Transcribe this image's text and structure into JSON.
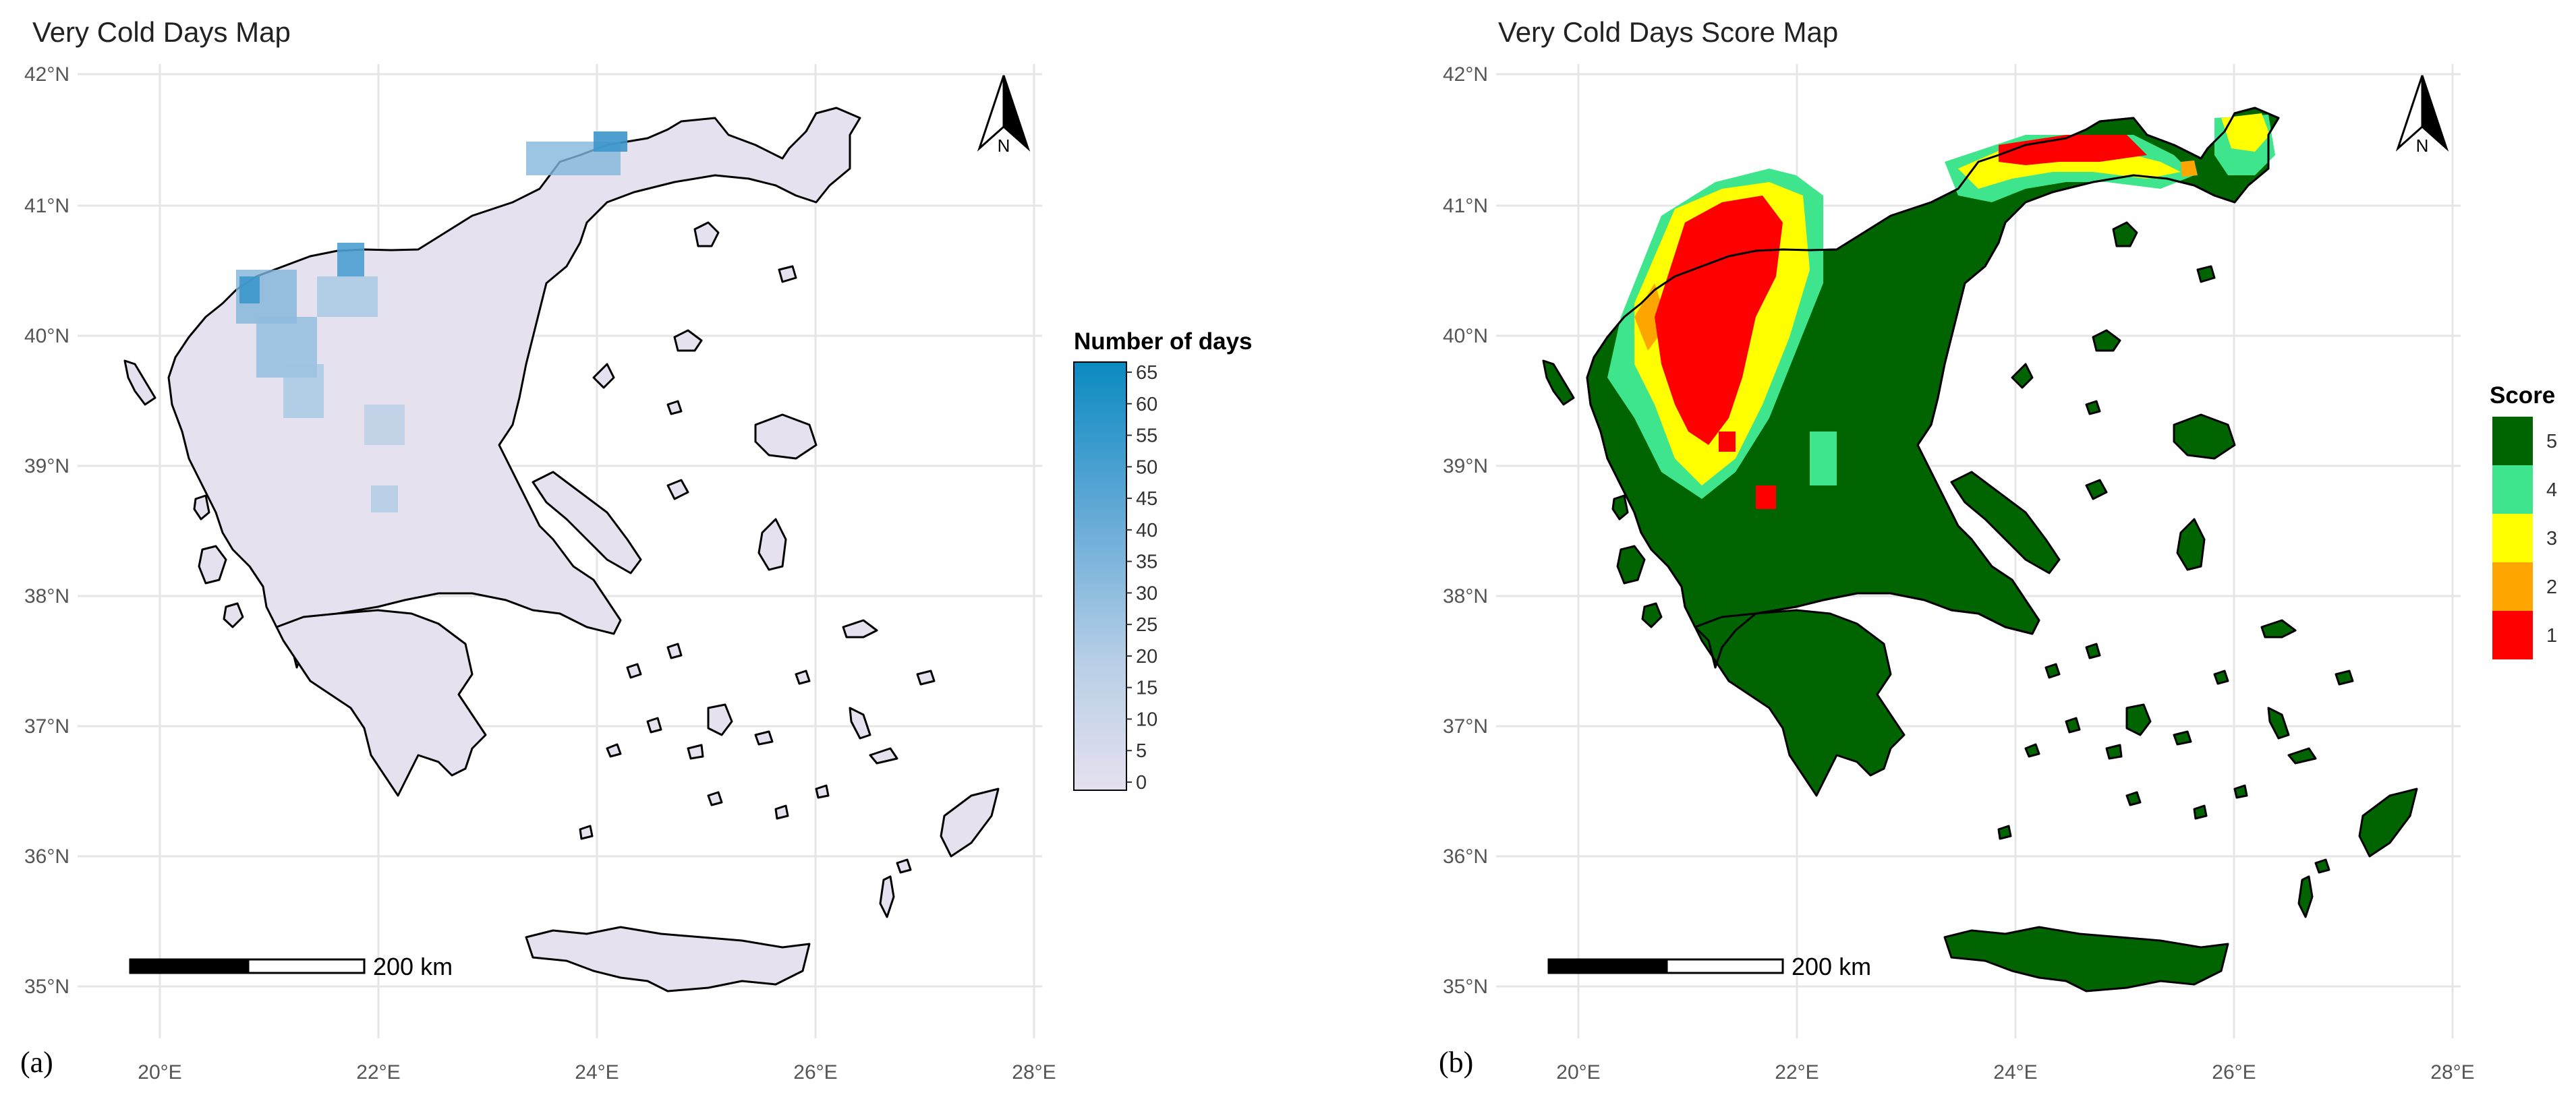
{
  "panels": [
    {
      "id": "a",
      "title": "Very Cold Days Map",
      "caption": "(a)",
      "north_label": "N",
      "scalebar_label": "200 km",
      "legend": {
        "title": "Number of days",
        "type": "continuous",
        "ticks": [
          "65",
          "60",
          "55",
          "50",
          "45",
          "40",
          "35",
          "30",
          "25",
          "20",
          "15",
          "10",
          "5",
          "0"
        ],
        "range": [
          0,
          65
        ],
        "colors": [
          "#0a8ac1",
          "#e5e1ef"
        ]
      },
      "fill_color": "#e5e1ef",
      "hotspot_color": "#2f8fc8"
    },
    {
      "id": "b",
      "title": "Very Cold Days Score Map",
      "caption": "(b)",
      "north_label": "N",
      "scalebar_label": "200 km",
      "legend": {
        "title": "Score",
        "type": "categorical",
        "items": [
          {
            "label": "5",
            "color": "#006400"
          },
          {
            "label": "4",
            "color": "#3fe58c"
          },
          {
            "label": "3",
            "color": "#ffff00"
          },
          {
            "label": "2",
            "color": "#ffa500"
          },
          {
            "label": "1",
            "color": "#ff0000"
          }
        ]
      },
      "fill_color": "#006400"
    }
  ],
  "axes": {
    "y_labels": [
      "42°N",
      "41°N",
      "40°N",
      "39°N",
      "38°N",
      "37°N",
      "36°N",
      "35°N"
    ],
    "x_labels": [
      "20°E",
      "22°E",
      "24°E",
      "26°E",
      "28°E"
    ]
  }
}
